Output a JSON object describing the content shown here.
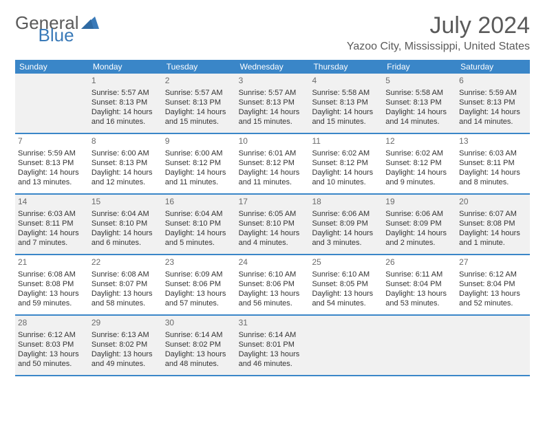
{
  "logo": {
    "text1": "General",
    "text2": "Blue"
  },
  "title": "July 2024",
  "location": "Yazoo City, Mississippi, United States",
  "colors": {
    "brand_blue": "#3a86c8",
    "text_gray": "#5a5a5a",
    "row_alt_bg": "#f1f1f1",
    "cell_text": "#333333"
  },
  "day_headings": [
    "Sunday",
    "Monday",
    "Tuesday",
    "Wednesday",
    "Thursday",
    "Friday",
    "Saturday"
  ],
  "weeks": [
    [
      {
        "blank": true
      },
      {
        "day": "1",
        "sunrise": "Sunrise: 5:57 AM",
        "sunset": "Sunset: 8:13 PM",
        "daylight": "Daylight: 14 hours and 16 minutes."
      },
      {
        "day": "2",
        "sunrise": "Sunrise: 5:57 AM",
        "sunset": "Sunset: 8:13 PM",
        "daylight": "Daylight: 14 hours and 15 minutes."
      },
      {
        "day": "3",
        "sunrise": "Sunrise: 5:57 AM",
        "sunset": "Sunset: 8:13 PM",
        "daylight": "Daylight: 14 hours and 15 minutes."
      },
      {
        "day": "4",
        "sunrise": "Sunrise: 5:58 AM",
        "sunset": "Sunset: 8:13 PM",
        "daylight": "Daylight: 14 hours and 15 minutes."
      },
      {
        "day": "5",
        "sunrise": "Sunrise: 5:58 AM",
        "sunset": "Sunset: 8:13 PM",
        "daylight": "Daylight: 14 hours and 14 minutes."
      },
      {
        "day": "6",
        "sunrise": "Sunrise: 5:59 AM",
        "sunset": "Sunset: 8:13 PM",
        "daylight": "Daylight: 14 hours and 14 minutes."
      }
    ],
    [
      {
        "day": "7",
        "sunrise": "Sunrise: 5:59 AM",
        "sunset": "Sunset: 8:13 PM",
        "daylight": "Daylight: 14 hours and 13 minutes."
      },
      {
        "day": "8",
        "sunrise": "Sunrise: 6:00 AM",
        "sunset": "Sunset: 8:13 PM",
        "daylight": "Daylight: 14 hours and 12 minutes."
      },
      {
        "day": "9",
        "sunrise": "Sunrise: 6:00 AM",
        "sunset": "Sunset: 8:12 PM",
        "daylight": "Daylight: 14 hours and 11 minutes."
      },
      {
        "day": "10",
        "sunrise": "Sunrise: 6:01 AM",
        "sunset": "Sunset: 8:12 PM",
        "daylight": "Daylight: 14 hours and 11 minutes."
      },
      {
        "day": "11",
        "sunrise": "Sunrise: 6:02 AM",
        "sunset": "Sunset: 8:12 PM",
        "daylight": "Daylight: 14 hours and 10 minutes."
      },
      {
        "day": "12",
        "sunrise": "Sunrise: 6:02 AM",
        "sunset": "Sunset: 8:12 PM",
        "daylight": "Daylight: 14 hours and 9 minutes."
      },
      {
        "day": "13",
        "sunrise": "Sunrise: 6:03 AM",
        "sunset": "Sunset: 8:11 PM",
        "daylight": "Daylight: 14 hours and 8 minutes."
      }
    ],
    [
      {
        "day": "14",
        "sunrise": "Sunrise: 6:03 AM",
        "sunset": "Sunset: 8:11 PM",
        "daylight": "Daylight: 14 hours and 7 minutes."
      },
      {
        "day": "15",
        "sunrise": "Sunrise: 6:04 AM",
        "sunset": "Sunset: 8:10 PM",
        "daylight": "Daylight: 14 hours and 6 minutes."
      },
      {
        "day": "16",
        "sunrise": "Sunrise: 6:04 AM",
        "sunset": "Sunset: 8:10 PM",
        "daylight": "Daylight: 14 hours and 5 minutes."
      },
      {
        "day": "17",
        "sunrise": "Sunrise: 6:05 AM",
        "sunset": "Sunset: 8:10 PM",
        "daylight": "Daylight: 14 hours and 4 minutes."
      },
      {
        "day": "18",
        "sunrise": "Sunrise: 6:06 AM",
        "sunset": "Sunset: 8:09 PM",
        "daylight": "Daylight: 14 hours and 3 minutes."
      },
      {
        "day": "19",
        "sunrise": "Sunrise: 6:06 AM",
        "sunset": "Sunset: 8:09 PM",
        "daylight": "Daylight: 14 hours and 2 minutes."
      },
      {
        "day": "20",
        "sunrise": "Sunrise: 6:07 AM",
        "sunset": "Sunset: 8:08 PM",
        "daylight": "Daylight: 14 hours and 1 minute."
      }
    ],
    [
      {
        "day": "21",
        "sunrise": "Sunrise: 6:08 AM",
        "sunset": "Sunset: 8:08 PM",
        "daylight": "Daylight: 13 hours and 59 minutes."
      },
      {
        "day": "22",
        "sunrise": "Sunrise: 6:08 AM",
        "sunset": "Sunset: 8:07 PM",
        "daylight": "Daylight: 13 hours and 58 minutes."
      },
      {
        "day": "23",
        "sunrise": "Sunrise: 6:09 AM",
        "sunset": "Sunset: 8:06 PM",
        "daylight": "Daylight: 13 hours and 57 minutes."
      },
      {
        "day": "24",
        "sunrise": "Sunrise: 6:10 AM",
        "sunset": "Sunset: 8:06 PM",
        "daylight": "Daylight: 13 hours and 56 minutes."
      },
      {
        "day": "25",
        "sunrise": "Sunrise: 6:10 AM",
        "sunset": "Sunset: 8:05 PM",
        "daylight": "Daylight: 13 hours and 54 minutes."
      },
      {
        "day": "26",
        "sunrise": "Sunrise: 6:11 AM",
        "sunset": "Sunset: 8:04 PM",
        "daylight": "Daylight: 13 hours and 53 minutes."
      },
      {
        "day": "27",
        "sunrise": "Sunrise: 6:12 AM",
        "sunset": "Sunset: 8:04 PM",
        "daylight": "Daylight: 13 hours and 52 minutes."
      }
    ],
    [
      {
        "day": "28",
        "sunrise": "Sunrise: 6:12 AM",
        "sunset": "Sunset: 8:03 PM",
        "daylight": "Daylight: 13 hours and 50 minutes."
      },
      {
        "day": "29",
        "sunrise": "Sunrise: 6:13 AM",
        "sunset": "Sunset: 8:02 PM",
        "daylight": "Daylight: 13 hours and 49 minutes."
      },
      {
        "day": "30",
        "sunrise": "Sunrise: 6:14 AM",
        "sunset": "Sunset: 8:02 PM",
        "daylight": "Daylight: 13 hours and 48 minutes."
      },
      {
        "day": "31",
        "sunrise": "Sunrise: 6:14 AM",
        "sunset": "Sunset: 8:01 PM",
        "daylight": "Daylight: 13 hours and 46 minutes."
      },
      {
        "blank": true
      },
      {
        "blank": true
      },
      {
        "blank": true
      }
    ]
  ]
}
